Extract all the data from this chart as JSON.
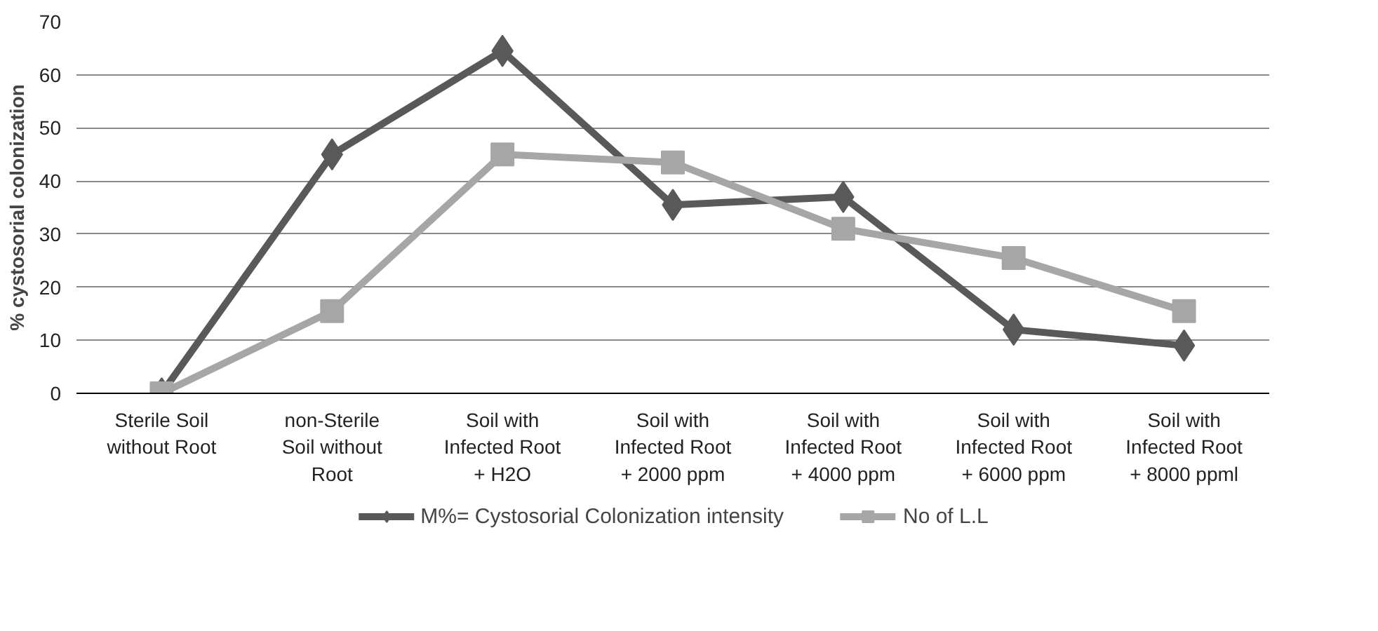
{
  "chart_data": {
    "type": "line",
    "ylabel": "% cystosorial colonization",
    "categories": [
      "Sterile Soil without Root",
      "non-Sterile Soil without Root",
      "Soil with Infected Root + H2O",
      "Soil with Infected Root + 2000 ppm",
      "Soil with Infected Root + 4000 ppm",
      "Soil with Infected Root + 6000 ppm",
      "Soil with Infected Root + 8000 ppml"
    ],
    "series": [
      {
        "name": "M%= Cystosorial Colonization intensity",
        "color": "#595959",
        "marker": "diamond",
        "values": [
          0,
          45,
          64.5,
          35.5,
          37,
          12,
          9
        ]
      },
      {
        "name": "No of L.L",
        "color": "#a6a6a6",
        "marker": "square",
        "values": [
          0,
          15.5,
          45,
          43.5,
          31,
          25.5,
          15.5
        ]
      }
    ],
    "ylim": [
      0,
      70
    ],
    "yticks": [
      0,
      10,
      20,
      30,
      40,
      50,
      60,
      70
    ],
    "grid": "y",
    "legend": "bottom"
  }
}
